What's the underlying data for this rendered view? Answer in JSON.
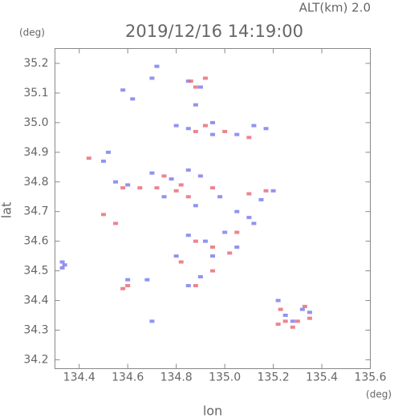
{
  "chart_data": {
    "type": "scatter",
    "title": "2019/12/16 14:19:00",
    "subtitle": "ALT(km) 2.0",
    "x_label": "lon",
    "y_label": "lat",
    "x_unit": "(deg)",
    "y_unit": "(deg)",
    "xlim": [
      134.3,
      135.6
    ],
    "ylim": [
      34.17,
      35.25
    ],
    "xticks": [
      134.4,
      134.6,
      134.8,
      {
        "value": 135,
        "label": "135.0"
      },
      135.2,
      135.4,
      135.6
    ],
    "yticks": [
      34.2,
      34.3,
      34.4,
      34.5,
      34.6,
      34.7,
      34.8,
      34.9,
      {
        "value": 35,
        "label": "35.0"
      },
      35.1,
      35.2
    ],
    "series": [
      {
        "color": "#7f7ff0",
        "x": [
          134.33,
          134.34,
          134.33,
          134.58,
          134.62,
          134.7,
          134.72,
          134.85,
          134.9,
          134.88,
          134.95,
          134.8,
          134.85,
          134.95,
          135.05,
          135.12,
          135.17,
          134.52,
          134.5,
          134.55,
          134.6,
          134.7,
          134.78,
          134.85,
          134.9,
          134.75,
          134.88,
          134.98,
          135.05,
          135.1,
          135.2,
          135.15,
          134.85,
          134.92,
          135.0,
          135.05,
          135.12,
          134.8,
          134.95,
          134.9,
          134.85,
          134.6,
          134.68,
          135.22,
          135.25,
          135.32,
          135.35,
          135.28,
          134.7
        ],
        "y": [
          34.51,
          34.52,
          34.53,
          35.11,
          35.08,
          35.15,
          35.19,
          35.14,
          35.12,
          35.06,
          35.0,
          34.99,
          34.98,
          34.96,
          34.96,
          34.99,
          34.98,
          34.9,
          34.87,
          34.8,
          34.79,
          34.83,
          34.81,
          34.84,
          34.82,
          34.75,
          34.72,
          34.75,
          34.7,
          34.68,
          34.77,
          34.74,
          34.62,
          34.6,
          34.63,
          34.58,
          34.66,
          34.55,
          34.55,
          34.48,
          34.45,
          34.47,
          34.47,
          34.4,
          34.35,
          34.37,
          34.36,
          34.33,
          34.33
        ]
      },
      {
        "color": "#e8707c",
        "x": [
          134.44,
          134.86,
          134.92,
          134.88,
          134.88,
          134.92,
          135.0,
          135.1,
          134.58,
          134.65,
          134.72,
          134.8,
          134.82,
          134.85,
          134.75,
          134.95,
          135.1,
          135.17,
          134.5,
          134.88,
          134.95,
          135.05,
          135.02,
          134.82,
          134.58,
          134.6,
          134.88,
          134.95,
          135.23,
          135.25,
          135.28,
          135.3,
          135.35,
          135.33,
          135.22,
          134.55
        ],
        "y": [
          34.88,
          35.14,
          35.15,
          35.12,
          34.97,
          34.99,
          34.97,
          34.95,
          34.78,
          34.78,
          34.78,
          34.77,
          34.79,
          34.75,
          34.82,
          34.78,
          34.76,
          34.77,
          34.69,
          34.6,
          34.58,
          34.63,
          34.56,
          34.53,
          34.44,
          34.45,
          34.45,
          34.5,
          34.37,
          34.33,
          34.31,
          34.33,
          34.34,
          34.38,
          34.32,
          34.66
        ]
      }
    ]
  }
}
